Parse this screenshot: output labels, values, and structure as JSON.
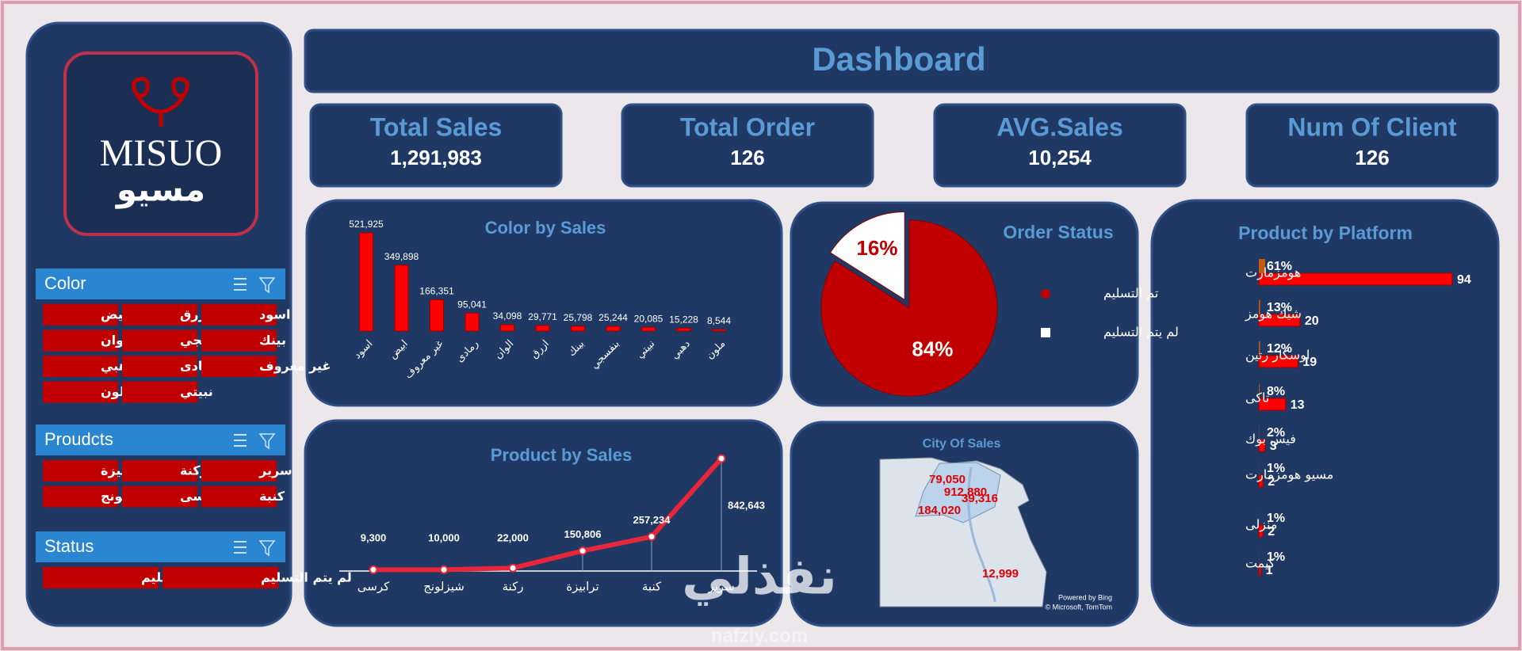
{
  "header": {
    "title": "Dashboard"
  },
  "logo": {
    "latin": "MISUO",
    "arabic": "مسيو"
  },
  "kpis": [
    {
      "label": "Total Sales",
      "value": "1,291,983"
    },
    {
      "label": "Total Order",
      "value": "126"
    },
    {
      "label": "AVG.Sales",
      "value": "10,254"
    },
    {
      "label": "Num Of Client",
      "value": "126"
    }
  ],
  "slicers": [
    {
      "title": "Color",
      "items": [
        "ابيض",
        "ازرق",
        "اسود",
        "الوان",
        "بنفسجي",
        "بينك",
        "دهبي",
        "رمادى",
        "غير معروف",
        "ملون",
        "نبيتي"
      ]
    },
    {
      "title": "Proudcts",
      "items": [
        "ترابيزة",
        "ركنة",
        "سرير",
        "شيزلونج",
        "كرسى",
        "كنبة"
      ]
    },
    {
      "title": "Status",
      "items": [
        "تم التسليم",
        "لم يتم التسليم"
      ]
    }
  ],
  "chart_data": [
    {
      "type": "bar",
      "title": "Color by Sales",
      "categories": [
        "اسود",
        "ابيض",
        "غير معروف",
        "رمادى",
        "الوان",
        "ازرق",
        "بينك",
        "بنفسجي",
        "نبيتي",
        "دهبي",
        "ملون"
      ],
      "values": [
        521925,
        349898,
        166351,
        95041,
        34098,
        29771,
        25798,
        25244,
        20085,
        15228,
        8544
      ],
      "value_labels": [
        "521,925",
        "349,898",
        "166,351",
        "95,041",
        "34,098",
        "29,771",
        "25,798",
        "25,244",
        "20,085",
        "15,228",
        "8,544"
      ],
      "color": "#ff0000"
    },
    {
      "type": "pie",
      "title": "Order Status",
      "categories": [
        "تم التسليم",
        "لم يتم التسليم"
      ],
      "values": [
        84,
        16
      ],
      "value_labels": [
        "84%",
        "16%"
      ],
      "colors": [
        "#c00000",
        "#ffffff"
      ]
    },
    {
      "type": "line",
      "title": "Product by Sales",
      "categories": [
        "كرسى",
        "شيزلونج",
        "ركنة",
        "ترابيزة",
        "كنبة",
        "سرير"
      ],
      "values": [
        9300,
        10000,
        22000,
        150806,
        257234,
        842643
      ],
      "value_labels": [
        "9,300",
        "10,000",
        "22,000",
        "150,806",
        "257,234",
        "842,643"
      ],
      "color": "#e8263a"
    },
    {
      "type": "map",
      "title": "City Of Sales",
      "values": [
        79050,
        912880,
        39316,
        184020,
        12999
      ],
      "value_labels": [
        "79,050",
        "912,880",
        "39,316",
        "184,020",
        "12,999"
      ],
      "attribution": [
        "Powered by Bing",
        "© Microsoft, TomTom"
      ],
      "color": "#e00000"
    },
    {
      "type": "hbar",
      "title": "Product by Platform",
      "categories": [
        "هومزمارت",
        "شيك هومز",
        "اوسكار رتين",
        "تاكى",
        "فيس بوك",
        "مسيو هومزمارت",
        "منزلى",
        "كيمت"
      ],
      "values": [
        94,
        20,
        19,
        13,
        3,
        2,
        2,
        1
      ],
      "shares": [
        61,
        13,
        12,
        8,
        2,
        1,
        1,
        1
      ],
      "share_labels": [
        "61%",
        "13%",
        "12%",
        "8%",
        "2%",
        "1%",
        "1%",
        "1%"
      ],
      "color": "#ff0000",
      "share_color": "#c55a11"
    }
  ],
  "watermark": {
    "text": "نفذلي",
    "url": "nafzly.com"
  }
}
